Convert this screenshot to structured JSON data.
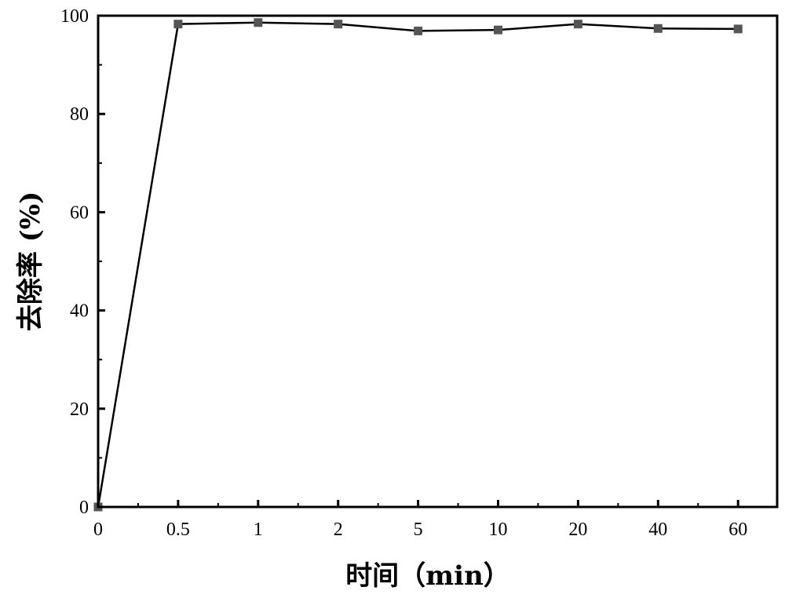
{
  "chart_data": {
    "type": "line",
    "title": "",
    "xlabel": "时间（min）",
    "ylabel": "去除率 (%)",
    "categories": [
      "0",
      "0.5",
      "1",
      "2",
      "5",
      "10",
      "20",
      "40",
      "60"
    ],
    "series": [
      {
        "values": [
          0,
          98.3,
          98.6,
          98.3,
          96.9,
          97.1,
          98.3,
          97.4,
          97.3
        ],
        "marker": "square",
        "color": "#555555",
        "line_color": "#000000"
      }
    ],
    "ylim": [
      0,
      100
    ],
    "yticks": [
      "0",
      "20",
      "40",
      "60",
      "80",
      "100"
    ],
    "grid": false,
    "legend": "none"
  }
}
